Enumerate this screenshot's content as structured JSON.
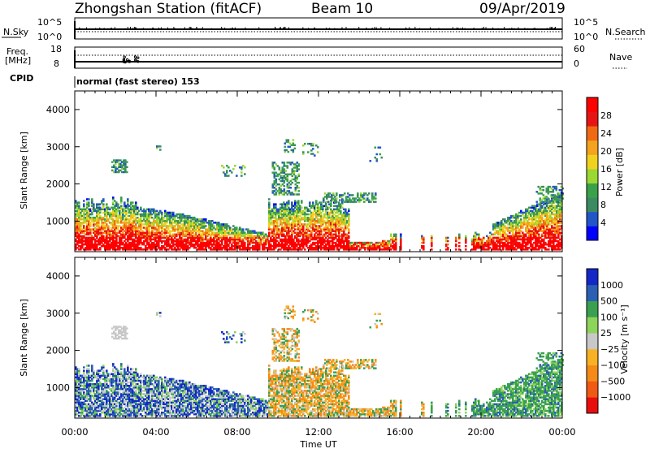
{
  "header": {
    "station": "Zhongshan Station (fitACF)",
    "beam": "Beam 10",
    "date": "09/Apr/2019"
  },
  "params": {
    "nsky_label": "N.Sky",
    "nsky_top": "10^5",
    "nsky_bottom": "10^0",
    "nsearch_label": "N.Search",
    "nsearch_top": "10^5",
    "nsearch_bottom": "10^0",
    "freq_label": "Freq.",
    "freq_unit": "[MHz]",
    "freq_top": "18",
    "freq_bottom": "8",
    "nave_label": "Nave",
    "nave_top": "60",
    "nave_bottom": "0",
    "cpid_label": "CPID",
    "cpid_text": "normal (fast stereo) 153"
  },
  "colors": {
    "power": [
      "#0000ff",
      "#2255c8",
      "#3a8a62",
      "#3aa14a",
      "#9bd832",
      "#f0d21e",
      "#f5a21e",
      "#f06a14",
      "#e81414",
      "#ff0000"
    ],
    "velocity": [
      "#e80e0e",
      "#f05a14",
      "#f58a19",
      "#f7b123",
      "#c8c8c8",
      "#8cd45a",
      "#3aa050",
      "#2a5fb4",
      "#1428c8"
    ]
  },
  "chart_data": [
    {
      "type": "heatmap",
      "name": "power",
      "ylabel": "Slant Range [km]",
      "xlabel": "Time UT",
      "x_ticks": [
        "00:00",
        "04:00",
        "08:00",
        "12:00",
        "16:00",
        "20:00",
        "00:00"
      ],
      "y_ticks": [
        1000,
        2000,
        3000,
        4000
      ],
      "ylim": [
        180,
        4500
      ],
      "xlim_hours": [
        0,
        24
      ],
      "colorbar": {
        "label": "Power [dB]",
        "ticks": [
          "4",
          "8",
          "12",
          "16",
          "20",
          "24",
          "28"
        ],
        "range": [
          0,
          30
        ]
      }
    },
    {
      "type": "heatmap",
      "name": "velocity",
      "ylabel": "Slant Range [km]",
      "xlabel": "Time UT",
      "x_ticks": [
        "00:00",
        "04:00",
        "08:00",
        "12:00",
        "16:00",
        "20:00",
        "00:00"
      ],
      "y_ticks": [
        1000,
        2000,
        3000,
        4000
      ],
      "ylim": [
        180,
        4500
      ],
      "xlim_hours": [
        0,
        24
      ],
      "colorbar": {
        "label": "Velocity [m s⁻¹]",
        "ticks": [
          "1000",
          "500",
          "100",
          "25",
          "−25",
          "−100",
          "−500",
          "−1000"
        ]
      }
    }
  ]
}
